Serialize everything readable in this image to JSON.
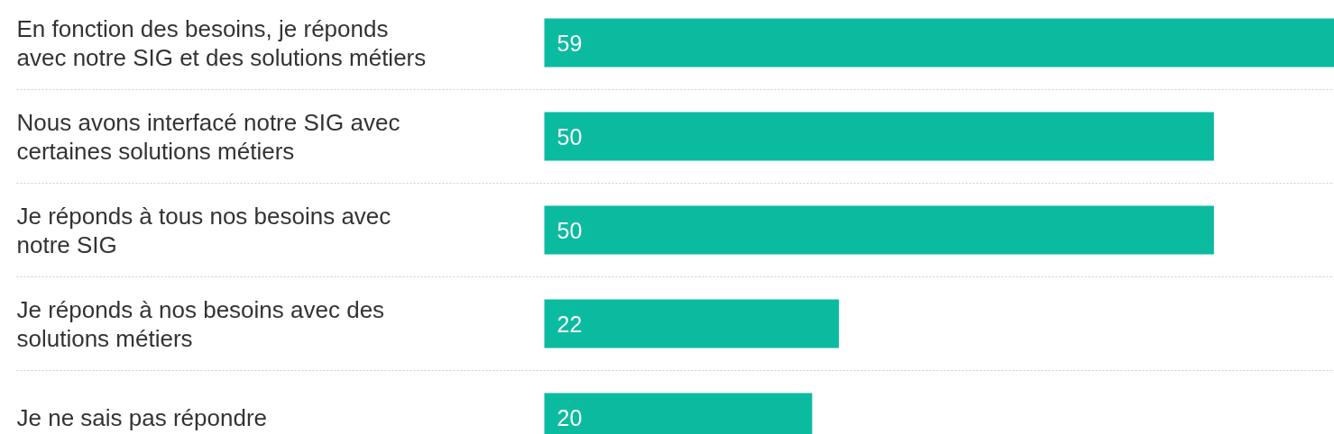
{
  "chart_data": {
    "type": "bar",
    "orientation": "horizontal",
    "data_labels": true,
    "grid": false,
    "categories": [
      "En fonction des besoins, je réponds avec notre SIG et des solutions métiers",
      "Nous avons interfacé notre SIG avec certaines solutions métiers",
      "Je réponds à tous nos besoins avec notre SIG",
      "Je réponds à nos besoins avec des solutions métiers",
      "Je ne sais pas répondre"
    ],
    "values": [
      59,
      50,
      50,
      22,
      20
    ],
    "color": "#0bbba0"
  }
}
